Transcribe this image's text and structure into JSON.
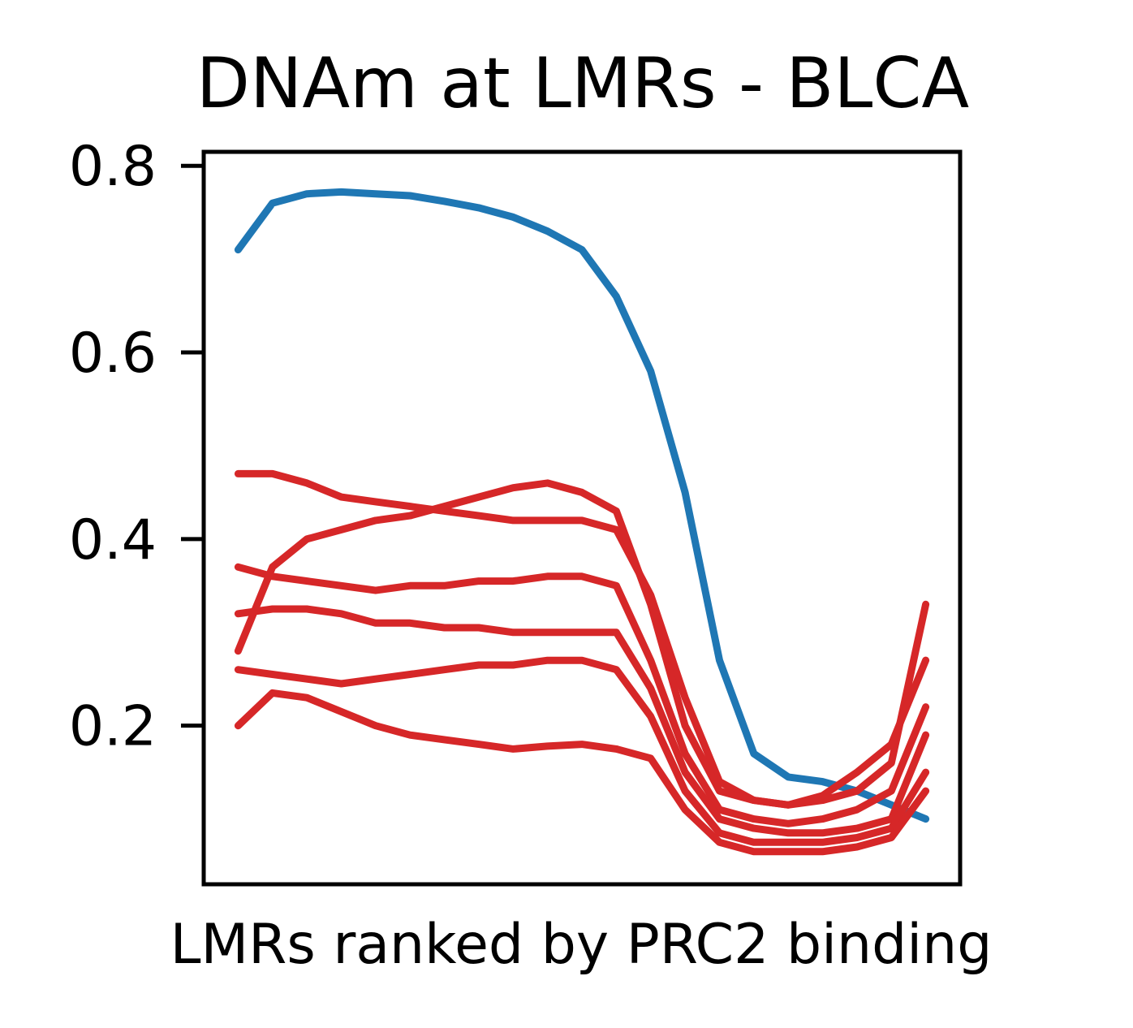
{
  "chart_data": {
    "type": "line",
    "title": "DNAm at LMRs - BLCA",
    "xlabel": "LMRs ranked by PRC2 binding",
    "ylabel": "",
    "xlim": [
      -5,
      105
    ],
    "ylim": [
      0.03,
      0.815
    ],
    "yticks": [
      {
        "value": 0.2,
        "label": "0.2"
      },
      {
        "value": 0.4,
        "label": "0.4"
      },
      {
        "value": 0.6,
        "label": "0.6"
      },
      {
        "value": 0.8,
        "label": "0.8"
      }
    ],
    "x_ticks_shown": false,
    "grid": false,
    "legend": "none",
    "x": [
      0,
      5,
      10,
      15,
      20,
      25,
      30,
      35,
      40,
      45,
      50,
      55,
      60,
      65,
      70,
      75,
      80,
      85,
      90,
      95,
      100
    ],
    "series": [
      {
        "color": "#1f77b4",
        "values": [
          0.71,
          0.76,
          0.77,
          0.772,
          0.77,
          0.768,
          0.762,
          0.755,
          0.745,
          0.73,
          0.71,
          0.66,
          0.58,
          0.45,
          0.27,
          0.17,
          0.145,
          0.14,
          0.13,
          0.115,
          0.1
        ]
      },
      {
        "color": "#d62728",
        "values": [
          0.47,
          0.47,
          0.46,
          0.445,
          0.44,
          0.435,
          0.43,
          0.425,
          0.42,
          0.42,
          0.42,
          0.41,
          0.34,
          0.23,
          0.14,
          0.12,
          0.115,
          0.12,
          0.13,
          0.16,
          0.33
        ]
      },
      {
        "color": "#d62728",
        "values": [
          0.28,
          0.37,
          0.4,
          0.41,
          0.42,
          0.425,
          0.435,
          0.445,
          0.455,
          0.46,
          0.45,
          0.43,
          0.33,
          0.2,
          0.13,
          0.12,
          0.115,
          0.125,
          0.15,
          0.18,
          0.27
        ]
      },
      {
        "color": "#d62728",
        "values": [
          0.37,
          0.36,
          0.355,
          0.35,
          0.345,
          0.35,
          0.35,
          0.355,
          0.355,
          0.36,
          0.36,
          0.35,
          0.27,
          0.17,
          0.11,
          0.1,
          0.095,
          0.1,
          0.11,
          0.13,
          0.22
        ]
      },
      {
        "color": "#d62728",
        "values": [
          0.32,
          0.325,
          0.325,
          0.32,
          0.31,
          0.31,
          0.305,
          0.305,
          0.3,
          0.3,
          0.3,
          0.3,
          0.24,
          0.15,
          0.1,
          0.09,
          0.085,
          0.085,
          0.09,
          0.1,
          0.19
        ]
      },
      {
        "color": "#d62728",
        "values": [
          0.26,
          0.255,
          0.25,
          0.245,
          0.25,
          0.255,
          0.26,
          0.265,
          0.265,
          0.27,
          0.27,
          0.26,
          0.21,
          0.13,
          0.085,
          0.075,
          0.075,
          0.075,
          0.08,
          0.09,
          0.15
        ]
      },
      {
        "color": "#d62728",
        "values": [
          0.2,
          0.235,
          0.23,
          0.215,
          0.2,
          0.19,
          0.185,
          0.18,
          0.175,
          0.178,
          0.18,
          0.175,
          0.165,
          0.11,
          0.075,
          0.065,
          0.065,
          0.065,
          0.07,
          0.08,
          0.13
        ]
      }
    ]
  }
}
